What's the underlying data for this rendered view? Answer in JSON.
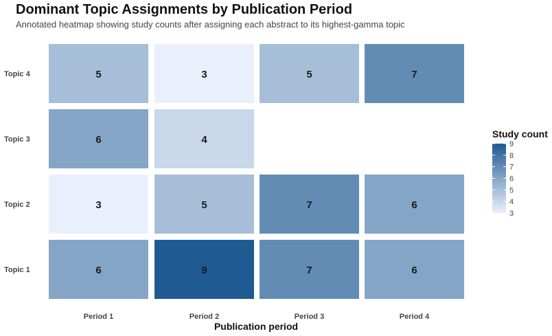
{
  "chart_data": {
    "type": "heatmap",
    "title": "Dominant Topic Assignments by Publication Period",
    "subtitle": "Annotated heatmap showing study counts after assigning each abstract to its highest-gamma topic",
    "xlabel": "Publication period",
    "ylabel": "",
    "x": [
      "Period 1",
      "Period 2",
      "Period 3",
      "Period 4"
    ],
    "y": [
      "Topic 1",
      "Topic 2",
      "Topic 3",
      "Topic 4"
    ],
    "cells": [
      {
        "x": "Period 1",
        "y": "Topic 1",
        "value": 6
      },
      {
        "x": "Period 2",
        "y": "Topic 1",
        "value": 9
      },
      {
        "x": "Period 3",
        "y": "Topic 1",
        "value": 7
      },
      {
        "x": "Period 4",
        "y": "Topic 1",
        "value": 6
      },
      {
        "x": "Period 1",
        "y": "Topic 2",
        "value": 3
      },
      {
        "x": "Period 2",
        "y": "Topic 2",
        "value": 5
      },
      {
        "x": "Period 3",
        "y": "Topic 2",
        "value": 7
      },
      {
        "x": "Period 4",
        "y": "Topic 2",
        "value": 6
      },
      {
        "x": "Period 1",
        "y": "Topic 3",
        "value": 6
      },
      {
        "x": "Period 2",
        "y": "Topic 3",
        "value": 4
      },
      {
        "x": "Period 1",
        "y": "Topic 4",
        "value": 5
      },
      {
        "x": "Period 2",
        "y": "Topic 4",
        "value": 3
      },
      {
        "x": "Period 3",
        "y": "Topic 4",
        "value": 5
      },
      {
        "x": "Period 4",
        "y": "Topic 4",
        "value": 7
      }
    ],
    "colorbar": {
      "title": "Study count",
      "ticks": [
        3,
        4,
        5,
        6,
        7,
        8,
        9
      ],
      "range": [
        3,
        9
      ],
      "low_color": "#eaf0fb",
      "high_color": "#1f5a92"
    },
    "grid": false,
    "legend_position": "right"
  }
}
